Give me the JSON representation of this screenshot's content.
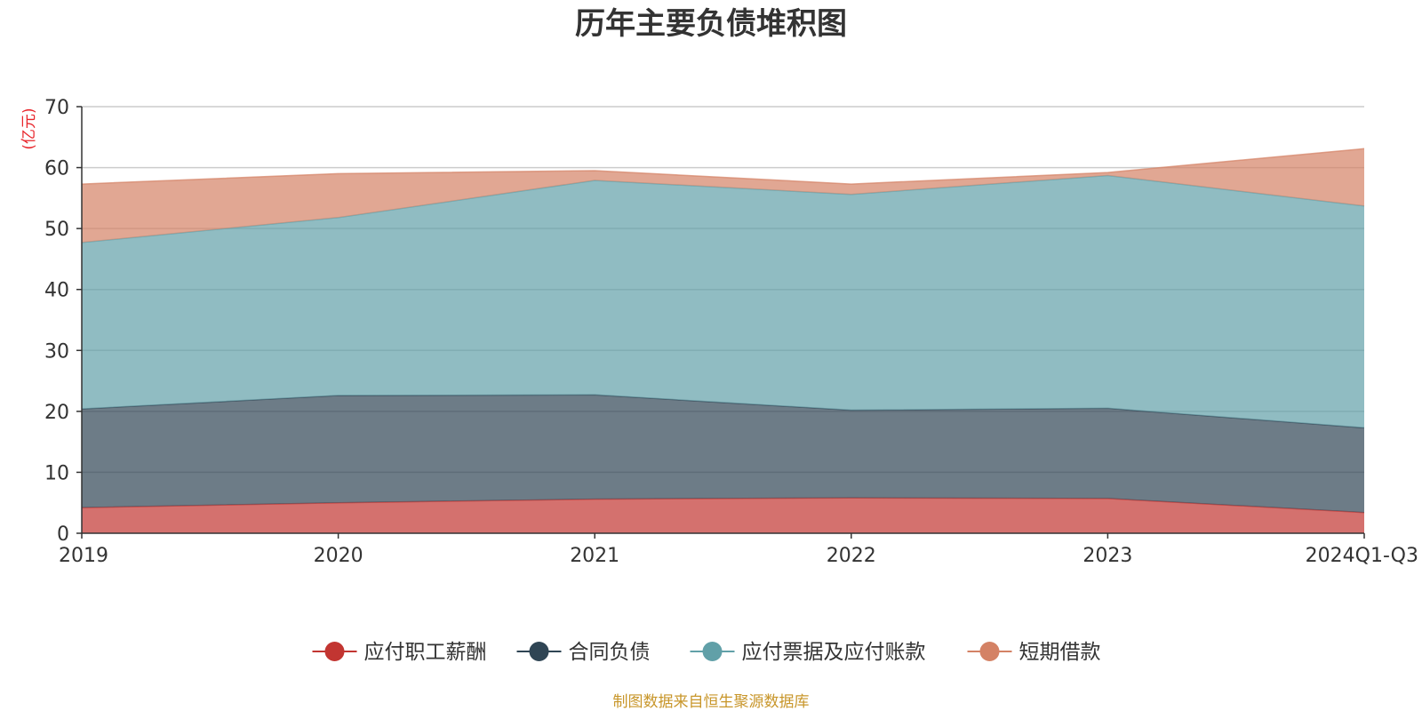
{
  "chart_data": {
    "type": "area",
    "stacked": true,
    "title": "历年主要负债堆积图",
    "unit_label": "(亿元)",
    "categories": [
      "2019",
      "2020",
      "2021",
      "2022",
      "2023",
      "2024Q1-Q3"
    ],
    "ylim": [
      0,
      70
    ],
    "yticks": [
      0,
      10,
      20,
      30,
      40,
      50,
      60,
      70
    ],
    "grid": true,
    "legend_position": "bottom",
    "series": [
      {
        "name": "应付职工薪酬",
        "color": "#c23531",
        "values": [
          4.2,
          5.0,
          5.6,
          5.8,
          5.7,
          3.4
        ]
      },
      {
        "name": "合同负债",
        "color": "#2f4554",
        "values": [
          16.2,
          17.6,
          17.1,
          14.4,
          14.8,
          13.9
        ]
      },
      {
        "name": "应付票据及应付账款",
        "color": "#61a0a8",
        "values": [
          27.3,
          29.2,
          35.2,
          35.4,
          38.2,
          36.4
        ]
      },
      {
        "name": "短期借款",
        "color": "#d48265",
        "values": [
          9.6,
          7.2,
          1.6,
          1.7,
          0.5,
          9.4
        ]
      }
    ],
    "source": "制图数据来自恒生聚源数据库"
  }
}
